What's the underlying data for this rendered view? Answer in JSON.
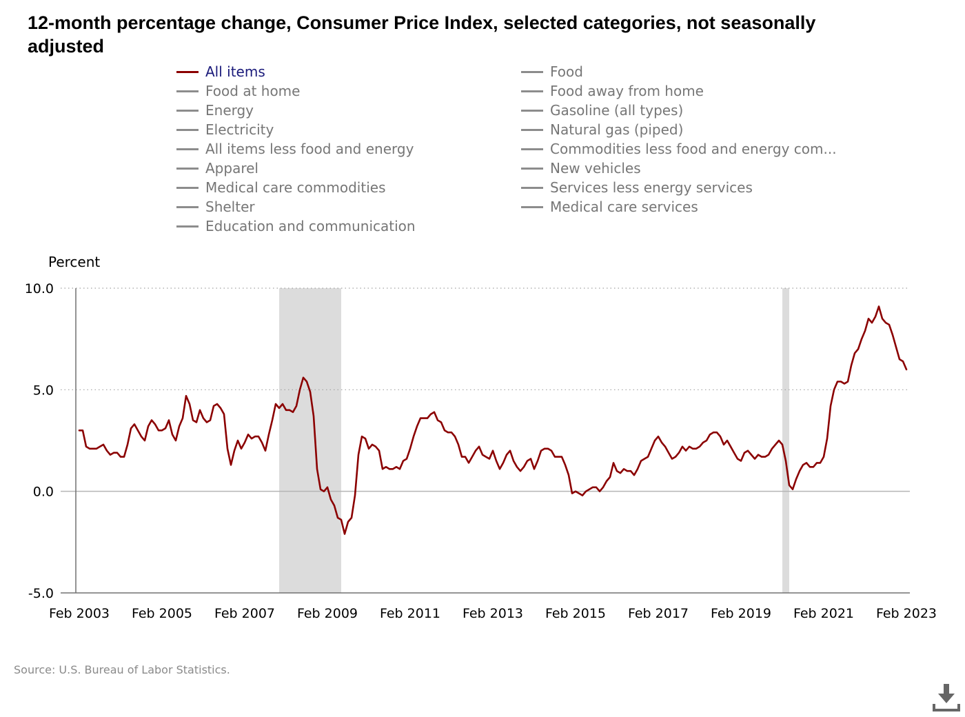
{
  "title": "12-month percentage change, Consumer Price Index, selected categories, not seasonally adjusted",
  "source": "Source: U.S. Bureau of Labor Statistics.",
  "download_icon": "download-icon",
  "colors": {
    "active_series": "#8b0000",
    "inactive_series": "#8c8c8c",
    "recession": "#dcdcdc",
    "grid": "#a0a0a0",
    "axis": "#707070"
  },
  "legend": {
    "left": [
      {
        "label": "All items",
        "active": true
      },
      {
        "label": "Food at home",
        "active": false
      },
      {
        "label": "Energy",
        "active": false
      },
      {
        "label": "Electricity",
        "active": false
      },
      {
        "label": "All items less food and energy",
        "active": false
      },
      {
        "label": "Apparel",
        "active": false
      },
      {
        "label": "Medical care commodities",
        "active": false
      },
      {
        "label": "Shelter",
        "active": false
      },
      {
        "label": "Education and communication",
        "active": false
      }
    ],
    "right": [
      {
        "label": "Food",
        "active": false
      },
      {
        "label": "Food away from home",
        "active": false
      },
      {
        "label": "Gasoline (all types)",
        "active": false
      },
      {
        "label": "Natural gas (piped)",
        "active": false
      },
      {
        "label": "Commodities less food and energy com...",
        "active": false
      },
      {
        "label": "New vehicles",
        "active": false
      },
      {
        "label": "Services less energy services",
        "active": false
      },
      {
        "label": "Medical care services",
        "active": false
      }
    ]
  },
  "chart_data": {
    "type": "line",
    "title": "12-month percentage change, Consumer Price Index, selected categories, not seasonally adjusted",
    "xlabel": "",
    "ylabel": "Percent",
    "x_start": "Feb 2003",
    "x_end": "Feb 2023",
    "frequency": "monthly",
    "ylim": [
      -5.0,
      10.0
    ],
    "yticks": [
      -5.0,
      0.0,
      5.0,
      10.0
    ],
    "ytick_labels": [
      "-5.0",
      "0.0",
      "5.0",
      "10.0"
    ],
    "xtick_labels": [
      "Feb 2003",
      "Feb 2005",
      "Feb 2007",
      "Feb 2009",
      "Feb 2011",
      "Feb 2013",
      "Feb 2015",
      "Feb 2017",
      "Feb 2019",
      "Feb 2021",
      "Feb 2023"
    ],
    "gridlines": [
      5.0,
      10.0
    ],
    "recessions": [
      {
        "start": "Dec 2007",
        "end": "Jun 2009"
      },
      {
        "start": "Feb 2020",
        "end": "Apr 2020"
      }
    ],
    "series": [
      {
        "name": "All items",
        "values": [
          3.0,
          3.0,
          2.2,
          2.1,
          2.1,
          2.1,
          2.2,
          2.3,
          2.0,
          1.8,
          1.9,
          1.9,
          1.7,
          1.7,
          2.3,
          3.1,
          3.3,
          3.0,
          2.7,
          2.5,
          3.2,
          3.5,
          3.3,
          3.0,
          3.0,
          3.1,
          3.5,
          2.8,
          2.5,
          3.2,
          3.6,
          4.7,
          4.3,
          3.5,
          3.4,
          4.0,
          3.6,
          3.4,
          3.5,
          4.2,
          4.3,
          4.1,
          3.8,
          2.1,
          1.3,
          2.0,
          2.5,
          2.1,
          2.4,
          2.8,
          2.6,
          2.7,
          2.7,
          2.4,
          2.0,
          2.8,
          3.5,
          4.3,
          4.1,
          4.3,
          4.0,
          4.0,
          3.9,
          4.2,
          5.0,
          5.6,
          5.4,
          4.9,
          3.7,
          1.1,
          0.1,
          0.0,
          0.2,
          -0.4,
          -0.7,
          -1.3,
          -1.4,
          -2.1,
          -1.5,
          -1.3,
          -0.2,
          1.8,
          2.7,
          2.6,
          2.1,
          2.3,
          2.2,
          2.0,
          1.1,
          1.2,
          1.1,
          1.1,
          1.2,
          1.1,
          1.5,
          1.6,
          2.1,
          2.7,
          3.2,
          3.6,
          3.6,
          3.6,
          3.8,
          3.9,
          3.5,
          3.4,
          3.0,
          2.9,
          2.9,
          2.7,
          2.3,
          1.7,
          1.7,
          1.4,
          1.7,
          2.0,
          2.2,
          1.8,
          1.7,
          1.6,
          2.0,
          1.5,
          1.1,
          1.4,
          1.8,
          2.0,
          1.5,
          1.2,
          1.0,
          1.2,
          1.5,
          1.6,
          1.1,
          1.5,
          2.0,
          2.1,
          2.1,
          2.0,
          1.7,
          1.7,
          1.7,
          1.3,
          0.8,
          -0.1,
          0.0,
          -0.1,
          -0.2,
          0.0,
          0.1,
          0.2,
          0.2,
          0.0,
          0.2,
          0.5,
          0.7,
          1.4,
          1.0,
          0.9,
          1.1,
          1.0,
          1.0,
          0.8,
          1.1,
          1.5,
          1.6,
          1.7,
          2.1,
          2.5,
          2.7,
          2.4,
          2.2,
          1.9,
          1.6,
          1.7,
          1.9,
          2.2,
          2.0,
          2.2,
          2.1,
          2.1,
          2.2,
          2.4,
          2.5,
          2.8,
          2.9,
          2.9,
          2.7,
          2.3,
          2.5,
          2.2,
          1.9,
          1.6,
          1.5,
          1.9,
          2.0,
          1.8,
          1.6,
          1.8,
          1.7,
          1.7,
          1.8,
          2.1,
          2.3,
          2.5,
          2.3,
          1.5,
          0.3,
          0.1,
          0.6,
          1.0,
          1.3,
          1.4,
          1.2,
          1.2,
          1.4,
          1.4,
          1.7,
          2.6,
          4.2,
          5.0,
          5.4,
          5.4,
          5.3,
          5.4,
          6.2,
          6.8,
          7.0,
          7.5,
          7.9,
          8.5,
          8.3,
          8.6,
          9.1,
          8.5,
          8.3,
          8.2,
          7.7,
          7.1,
          6.5,
          6.4,
          6.0
        ]
      }
    ],
    "legend_position": "top"
  }
}
